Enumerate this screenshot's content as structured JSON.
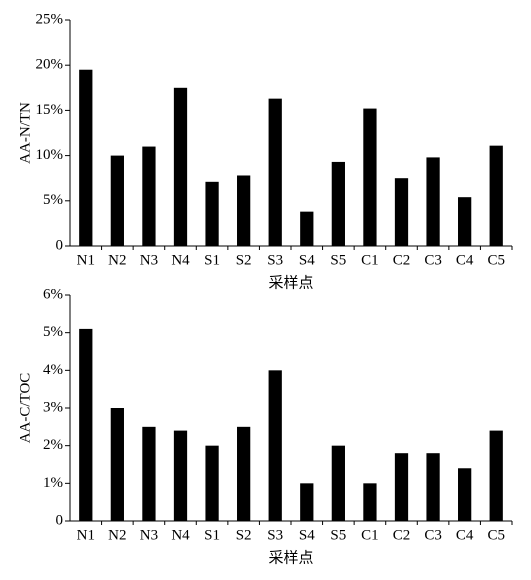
{
  "chart_data": [
    {
      "type": "bar",
      "y_label": "AA-N/TN",
      "x_label": "采样点",
      "categories": [
        "N1",
        "N2",
        "N3",
        "N4",
        "S1",
        "S2",
        "S3",
        "S4",
        "S5",
        "C1",
        "C2",
        "C3",
        "C4",
        "C5"
      ],
      "values": [
        19.5,
        10.0,
        11.0,
        17.5,
        7.1,
        7.8,
        16.3,
        3.8,
        9.3,
        15.2,
        7.5,
        9.8,
        5.4,
        11.1
      ],
      "color": "#000000",
      "ylim": [
        0,
        25
      ],
      "yticks": [
        0,
        {
          "value": 5,
          "label": "5%"
        },
        {
          "value": 10,
          "label": "10%"
        },
        {
          "value": 15,
          "label": "15%"
        },
        {
          "value": 20,
          "label": "20%"
        },
        {
          "value": 25,
          "label": "25%"
        }
      ]
    },
    {
      "type": "bar",
      "y_label": "AA-C/TOC",
      "x_label": "采样点",
      "categories": [
        "N1",
        "N2",
        "N3",
        "N4",
        "S1",
        "S2",
        "S3",
        "S4",
        "S5",
        "C1",
        "C2",
        "C3",
        "C4",
        "C5"
      ],
      "values": [
        5.1,
        3.0,
        2.5,
        2.4,
        2.0,
        2.5,
        4.0,
        1.0,
        2.0,
        1.0,
        1.8,
        1.8,
        1.4,
        2.4
      ],
      "color": "#000000",
      "ylim": [
        0,
        6
      ],
      "yticks": [
        0,
        {
          "value": 1,
          "label": "1%"
        },
        {
          "value": 2,
          "label": "2%"
        },
        {
          "value": 3,
          "label": "3%"
        },
        {
          "value": 4,
          "label": "4%"
        },
        {
          "value": 5,
          "label": "5%"
        },
        {
          "value": 6,
          "label": "6%"
        }
      ]
    }
  ]
}
